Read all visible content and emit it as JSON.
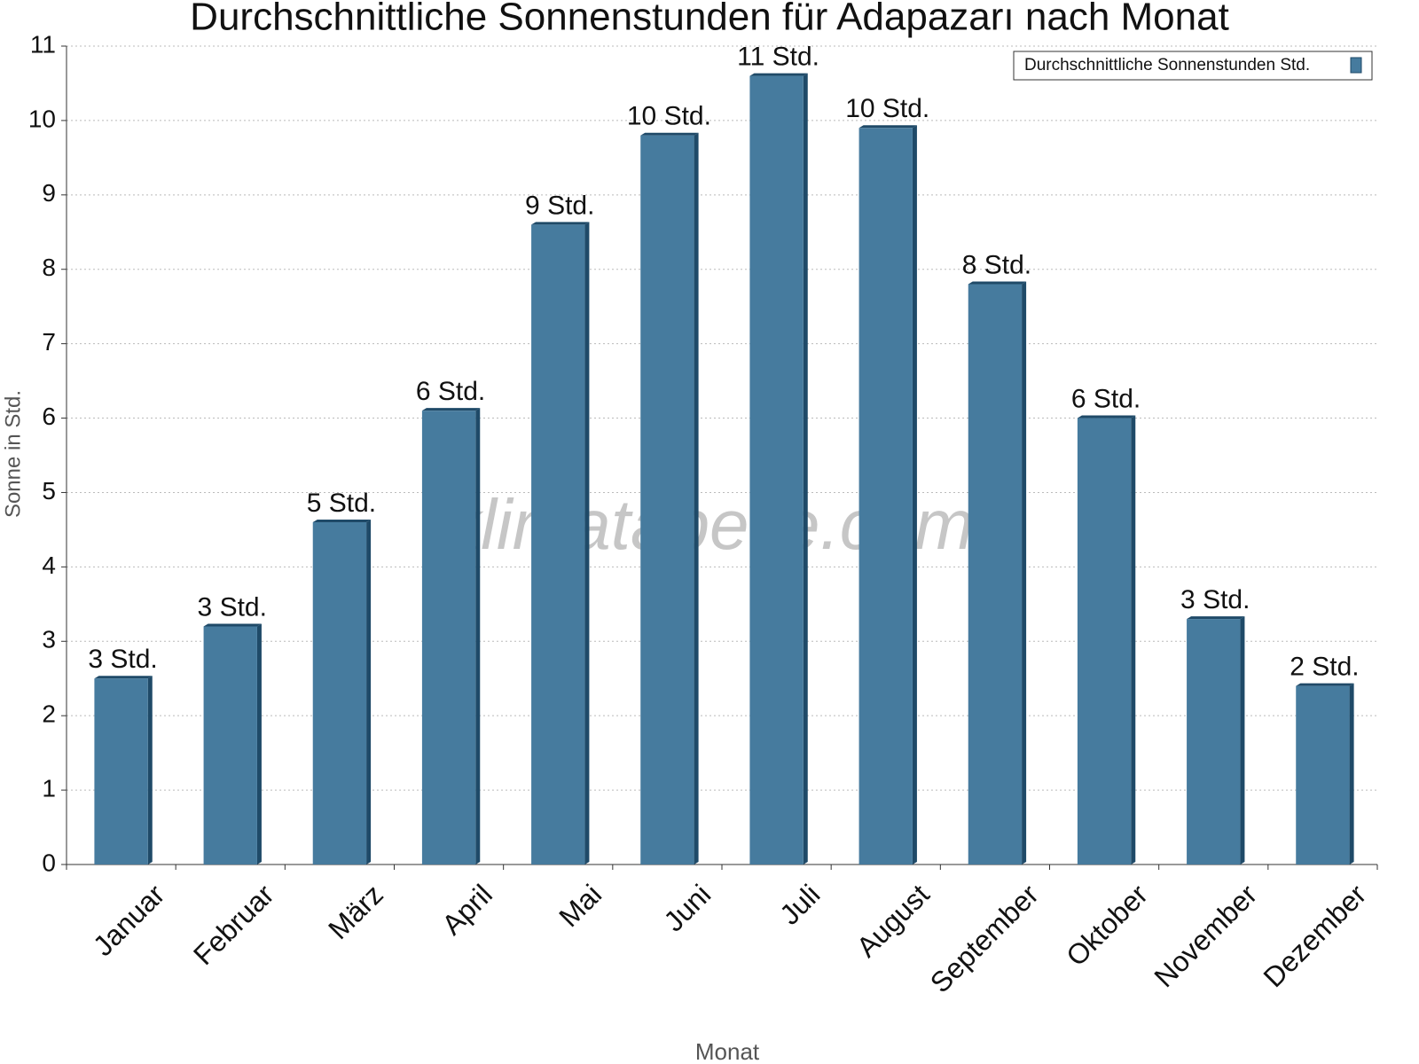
{
  "chart_data": {
    "type": "bar",
    "title": "Durchschnittliche Sonnenstunden für Adapazarı nach Monat",
    "x_label": "Monat",
    "y_label": "Sonne in Std.",
    "watermark": "klimatabelle.com",
    "categories": [
      "Januar",
      "Februar",
      "März",
      "April",
      "Mai",
      "Juni",
      "Juli",
      "August",
      "September",
      "Oktober",
      "November",
      "Dezember"
    ],
    "series": [
      {
        "name": "Durchschnittliche Sonnenstunden Std.",
        "color": "#467b9e",
        "values": [
          2.5,
          3.2,
          4.6,
          6.1,
          8.6,
          9.8,
          10.6,
          9.9,
          7.8,
          6.0,
          3.3,
          2.4
        ],
        "value_labels": [
          "3 Std.",
          "3 Std.",
          "5 Std.",
          "6 Std.",
          "9 Std.",
          "10 Std.",
          "11 Std.",
          "10 Std.",
          "8 Std.",
          "6 Std.",
          "3 Std.",
          "2 Std."
        ]
      }
    ],
    "ylim": [
      0,
      11
    ],
    "yticks": [
      0,
      1,
      2,
      3,
      4,
      5,
      6,
      7,
      8,
      9,
      10,
      11
    ],
    "grid": true,
    "legend": "top-right"
  }
}
